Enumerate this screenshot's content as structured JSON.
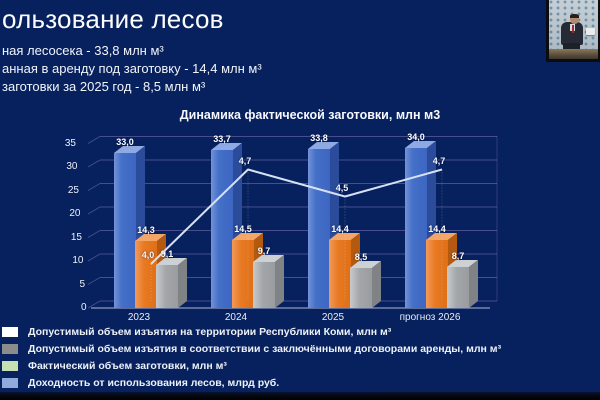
{
  "slide": {
    "title": "ользование лесов",
    "bullets": [
      "ная лесосека - 33,8 млн м³",
      "анная в аренду под заготовку - 14,4 млн м³",
      "заготовки за 2025 год - 8,5 млн м³"
    ]
  },
  "chart_data": {
    "type": "bar",
    "style": "3d-columns-with-line-overlay",
    "title": "Динамика фактической заготовки, млн м3",
    "categories": [
      "2023",
      "2024",
      "2025",
      "прогноз 2026"
    ],
    "series": [
      {
        "name": "Допустимый объем изъятия на территории Республики Коми, млн м³",
        "kind": "bar",
        "color": "#4472c4",
        "values": [
          33.0,
          33.7,
          33.8,
          34.0
        ]
      },
      {
        "name": "Допустимый объем изъятия в соответствии с заключёнными договорами аренды, млн м³",
        "kind": "bar",
        "color": "#ed7d31",
        "values": [
          14.3,
          14.5,
          14.4,
          14.4
        ]
      },
      {
        "name": "Фактический объем заготовки, млн м³",
        "kind": "bar",
        "color": "#a6a6a6",
        "values": [
          9.1,
          9.7,
          8.5,
          8.7
        ]
      },
      {
        "name": "Доходность от использования лесов, млрд руб.",
        "kind": "line",
        "color": "#d8e0f4",
        "values": [
          4.0,
          4.7,
          4.5,
          4.7
        ]
      }
    ],
    "ylabel": "",
    "xlabel": "",
    "y_axis": {
      "ticks": [
        0,
        5,
        10,
        15,
        20,
        25,
        30,
        35
      ],
      "range": [
        0,
        35
      ]
    },
    "grid": true,
    "legend_position": "bottom-left",
    "number_format": "comma-decimal"
  },
  "legend": {
    "items": [
      {
        "label": "Допустимый объем изъятия на территории Республики Коми, млн м³",
        "swatch_color": "#ffffff"
      },
      {
        "label": "Допустимый объем изъятия в соответствии с заключёнными договорами аренды, млн м³",
        "swatch_color": "#8c8c8c"
      },
      {
        "label": "Фактический объем заготовки, млн м³",
        "swatch_color": "#c6e0b4"
      },
      {
        "label": "Доходность от использования лесов, млрд руб.",
        "swatch_color": "#8faadc"
      }
    ]
  },
  "colors": {
    "background": "#06215e",
    "grid_line": "rgba(150,130,200,0.45)",
    "axis_line": "rgba(195,200,230,0.9)",
    "text": "#ffffff"
  }
}
